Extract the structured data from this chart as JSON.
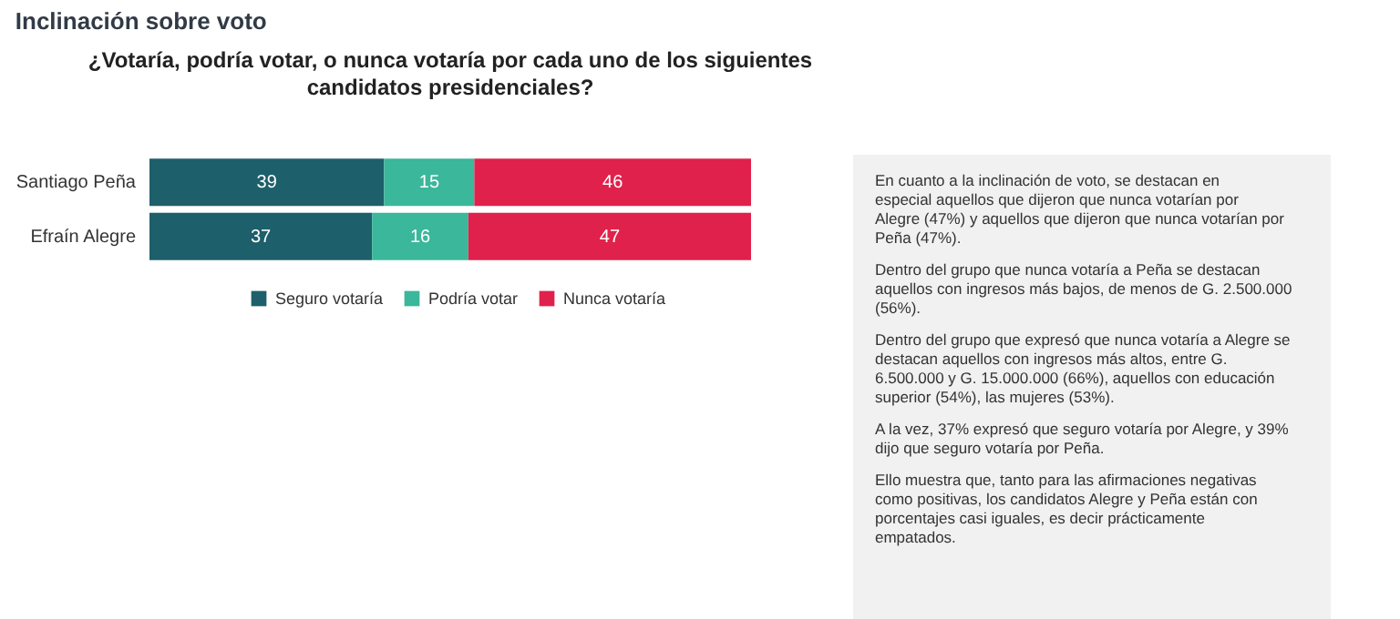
{
  "chart_data": {
    "type": "bar",
    "orientation": "horizontal",
    "stacked": true,
    "data_labels": true,
    "legend": "bottom",
    "grid": false,
    "title": "Inclinación sobre voto",
    "subtitle": "¿Votaría, podría votar, o nunca votaría por cada uno de los siguientes candidatos presidenciales?",
    "categories": [
      "Santiago Peña",
      "Efraín Alegre"
    ],
    "series": [
      {
        "name": "Seguro votaría",
        "color": "#1d5f6a",
        "values": [
          39,
          37
        ]
      },
      {
        "name": "Podría votar",
        "color": "#3bb79b",
        "values": [
          15,
          16
        ]
      },
      {
        "name": "Nunca votaría",
        "color": "#e0214b",
        "values": [
          46,
          47
        ]
      }
    ],
    "annotations": [
      "En cuanto a la inclinación de voto, se destacan en especial aquellos que dijeron que nunca votarían por Alegre (47%) y aquellos que dijeron que nunca votarían por Peña (47%).",
      "Dentro del grupo que nunca votaría a Peña se destacan aquellos con ingresos más bajos, de menos de G. 2.500.000 (56%).",
      "Dentro del grupo que expresó que nunca votaría a Alegre se destacan aquellos con ingresos más altos, entre G. 6.500.000 y G. 15.000.000 (66%), aquellos con educación superior (54%), las mujeres (53%).",
      "A la vez, 37% expresó que seguro votaría por Alegre, y 39% dijo que seguro votaría por Peña.",
      "Ello muestra que, tanto para las afirmaciones negativas como positivas, los candidatos Alegre y Peña están con porcentajes casi iguales, es decir prácticamente empatados."
    ]
  }
}
